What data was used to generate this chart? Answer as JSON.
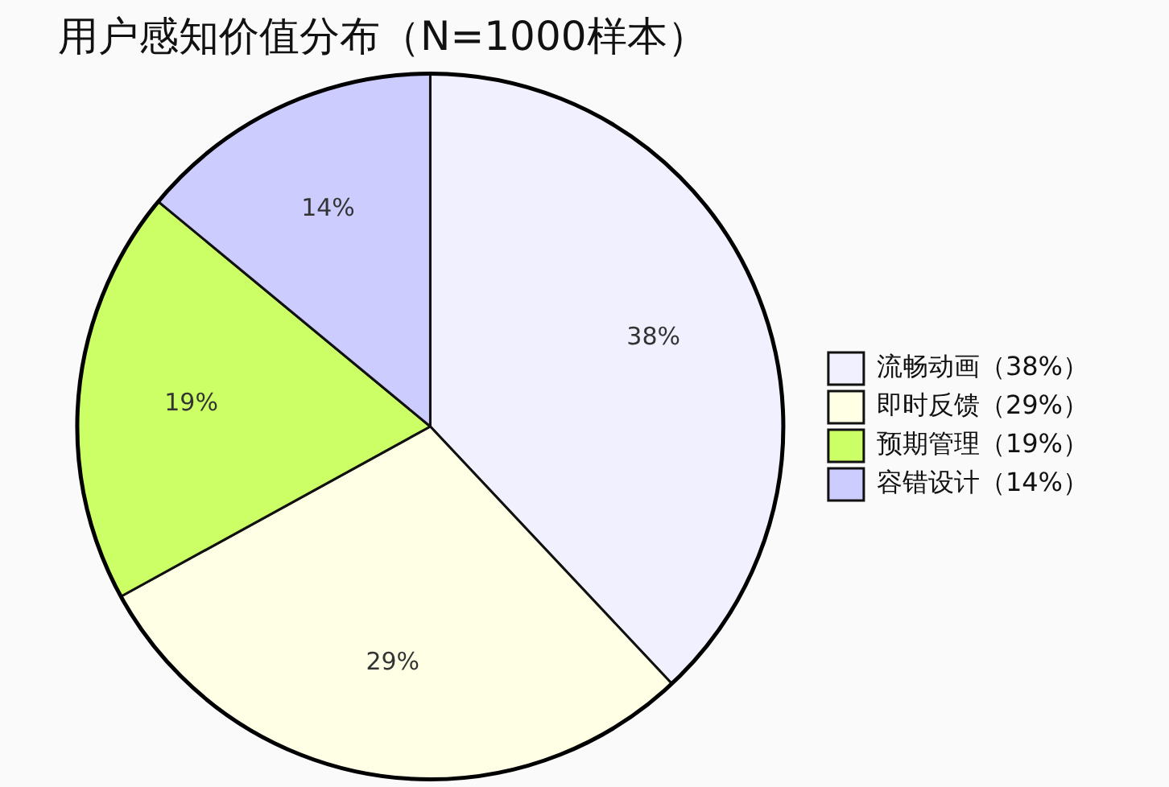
{
  "chart_data": {
    "type": "pie",
    "title": "用户感知价值分布（N=1000样本）",
    "categories": [
      "流畅动画（38%）",
      "即时反馈（29%）",
      "预期管理（19%）",
      "容错设计（14%）"
    ],
    "values": [
      38,
      29,
      19,
      14
    ],
    "value_labels": [
      "38%",
      "29%",
      "19%",
      "14%"
    ],
    "colors": [
      "#f0f0ff",
      "#ffffe6",
      "#ccff66",
      "#ccccff"
    ],
    "legend": "right"
  }
}
